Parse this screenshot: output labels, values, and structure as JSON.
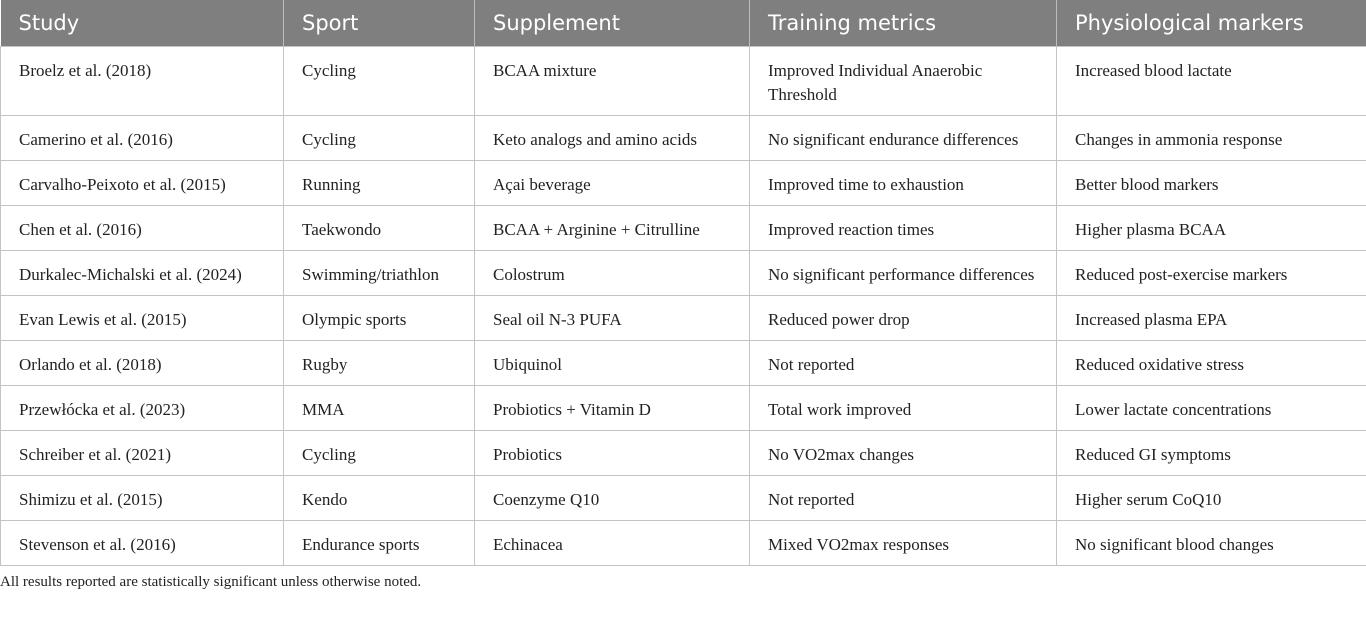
{
  "table": {
    "columns": [
      "Study",
      "Sport",
      "Supplement",
      "Training metrics",
      "Physiological markers"
    ],
    "rows": [
      [
        "Broelz et al. (2018)",
        "Cycling",
        "BCAA mixture",
        "Improved Individual Anaerobic Threshold",
        "Increased blood lactate"
      ],
      [
        "Camerino et al. (2016)",
        "Cycling",
        "Keto analogs and amino acids",
        "No significant endurance differences",
        "Changes in ammonia response"
      ],
      [
        "Carvalho-Peixoto et al. (2015)",
        "Running",
        "Açai beverage",
        "Improved time to exhaustion",
        "Better blood markers"
      ],
      [
        "Chen et al. (2016)",
        "Taekwondo",
        "BCAA + Arginine + Citrulline",
        "Improved reaction times",
        "Higher plasma BCAA"
      ],
      [
        "Durkalec-Michalski et al. (2024)",
        "Swimming/triathlon",
        "Colostrum",
        "No significant performance differences",
        "Reduced post-exercise markers"
      ],
      [
        "Evan Lewis et al. (2015)",
        "Olympic sports",
        "Seal oil N-3 PUFA",
        "Reduced power drop",
        "Increased plasma EPA"
      ],
      [
        "Orlando et al. (2018)",
        "Rugby",
        "Ubiquinol",
        "Not reported",
        "Reduced oxidative stress"
      ],
      [
        "Przewłócka et al. (2023)",
        "MMA",
        "Probiotics + Vitamin D",
        "Total work improved",
        "Lower lactate concentrations"
      ],
      [
        "Schreiber et al. (2021)",
        "Cycling",
        "Probiotics",
        "No VO2max changes",
        "Reduced GI symptoms"
      ],
      [
        "Shimizu et al. (2015)",
        "Kendo",
        "Coenzyme Q10",
        "Not reported",
        "Higher serum CoQ10"
      ],
      [
        "Stevenson et al. (2016)",
        "Endurance sports",
        "Echinacea",
        "Mixed VO2max responses",
        "No significant blood changes"
      ]
    ]
  },
  "footnote": "All results reported are statistically significant unless otherwise noted."
}
